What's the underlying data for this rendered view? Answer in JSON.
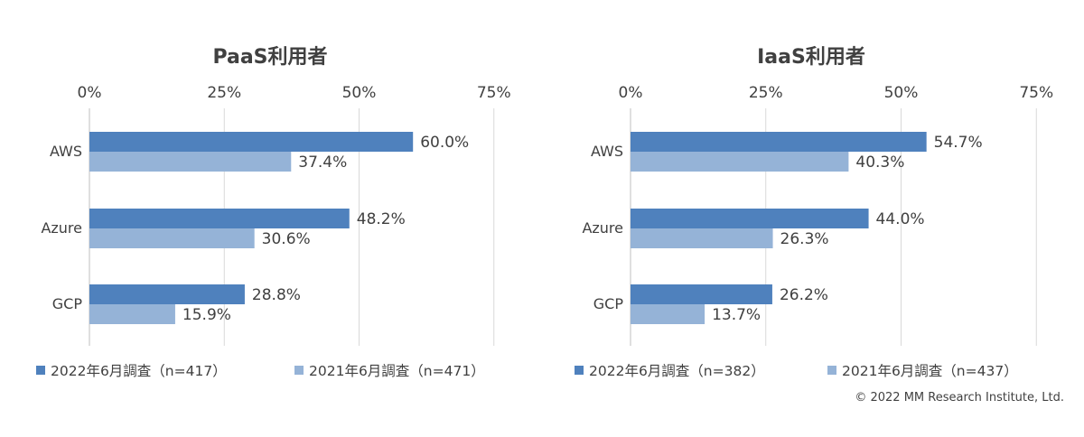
{
  "colors": {
    "series_2022": "#4f81bd",
    "series_2021": "#95b3d7",
    "grid": "#d9d9d9",
    "text": "#404040"
  },
  "copyright": "© 2022 MM Research Institute, Ltd.",
  "chart_data": [
    {
      "type": "bar",
      "orientation": "horizontal",
      "title": "PaaS利用者",
      "categories": [
        "AWS",
        "Azure",
        "GCP"
      ],
      "xlim": [
        0,
        75
      ],
      "x_ticks": [
        "0%",
        "25%",
        "50%",
        "75%"
      ],
      "grid": true,
      "legend_position": "bottom",
      "series": [
        {
          "name": "2022年6月調査（n=417）",
          "values": [
            60.0,
            48.2,
            28.8
          ],
          "labels": [
            "60.0%",
            "48.2%",
            "28.8%"
          ]
        },
        {
          "name": "2021年6月調査（n=471）",
          "values": [
            37.4,
            30.6,
            15.9
          ],
          "labels": [
            "37.4%",
            "30.6%",
            "15.9%"
          ]
        }
      ]
    },
    {
      "type": "bar",
      "orientation": "horizontal",
      "title": "IaaS利用者",
      "categories": [
        "AWS",
        "Azure",
        "GCP"
      ],
      "xlim": [
        0,
        75
      ],
      "x_ticks": [
        "0%",
        "25%",
        "50%",
        "75%"
      ],
      "grid": true,
      "legend_position": "bottom",
      "series": [
        {
          "name": "2022年6月調査（n=382）",
          "values": [
            54.7,
            44.0,
            26.2
          ],
          "labels": [
            "54.7%",
            "44.0%",
            "26.2%"
          ]
        },
        {
          "name": "2021年6月調査（n=437）",
          "values": [
            40.3,
            26.3,
            13.7
          ],
          "labels": [
            "40.3%",
            "26.3%",
            "13.7%"
          ]
        }
      ]
    }
  ]
}
